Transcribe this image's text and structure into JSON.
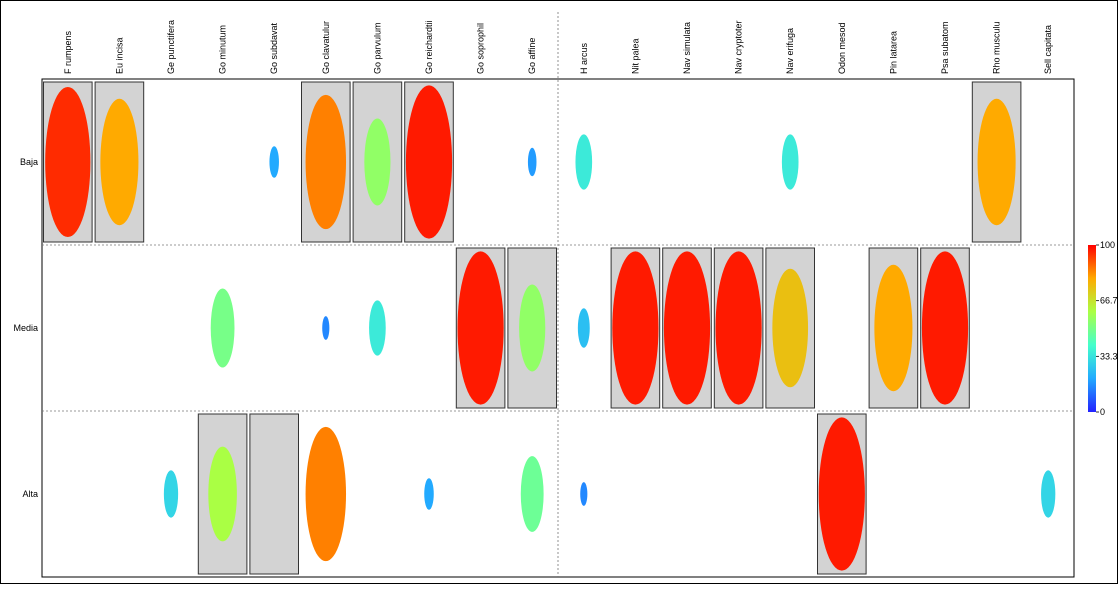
{
  "chart_data": {
    "type": "heatmap",
    "mark": "ellipse",
    "title": "",
    "xlabel": "",
    "ylabel": "",
    "columns": [
      "F rumpens",
      "Eu incisa",
      "Ge punctifera",
      "Go minutum",
      "Go subdavat",
      "Go clavatulur",
      "Go parvulum",
      "Go reichardtii",
      "Go soprophil",
      "Go affine",
      "H arcus",
      "Nit palea",
      "Nav simulata",
      "Nav cryptoter",
      "Nav erifuga",
      "Odon mesod",
      "Pin latarea",
      "Psa subatom",
      "Rho musculu",
      "Sell capitata"
    ],
    "rows": [
      "Baja",
      "Media",
      "Alta"
    ],
    "values": [
      [
        95,
        80,
        0,
        0,
        20,
        85,
        55,
        97,
        0,
        18,
        35,
        0,
        0,
        0,
        35,
        0,
        0,
        0,
        80,
        0
      ],
      [
        0,
        0,
        0,
        50,
        0,
        15,
        35,
        0,
        97,
        55,
        25,
        97,
        97,
        97,
        75,
        0,
        80,
        97,
        0,
        0
      ],
      [
        0,
        0,
        30,
        60,
        0,
        85,
        0,
        20,
        0,
        48,
        15,
        0,
        0,
        0,
        0,
        97,
        0,
        0,
        0,
        30
      ]
    ],
    "highlighted": [
      [
        true,
        true,
        false,
        false,
        false,
        true,
        true,
        true,
        false,
        false,
        false,
        false,
        false,
        false,
        false,
        false,
        false,
        false,
        true,
        false
      ],
      [
        false,
        false,
        false,
        false,
        false,
        false,
        false,
        false,
        true,
        true,
        false,
        true,
        true,
        true,
        true,
        false,
        true,
        true,
        false,
        false
      ],
      [
        false,
        false,
        false,
        true,
        true,
        false,
        false,
        false,
        false,
        false,
        false,
        false,
        false,
        false,
        false,
        true,
        false,
        false,
        false,
        false
      ]
    ],
    "color_scale": {
      "range": [
        0,
        100
      ],
      "ticks": [
        "100",
        "66.7",
        "33.3",
        "0"
      ],
      "stops": [
        "#2222ff",
        "#22aaff",
        "#44ffcc",
        "#aaff44",
        "#ffaa00",
        "#ff0000"
      ]
    },
    "highlight_color": "#d3d3d3",
    "grid": "dashed"
  }
}
